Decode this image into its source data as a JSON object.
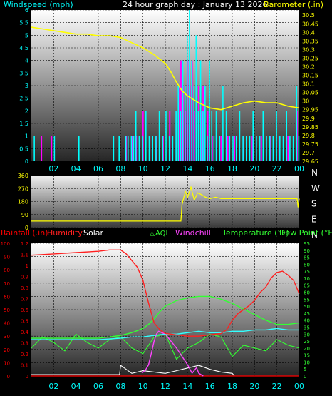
{
  "header": {
    "title": "24 hour graph day : January 13 2026"
  },
  "colors": {
    "windspeed": "#00ffff",
    "gust": "#ff00ff",
    "barometer": "#ffff00",
    "direction": "#ffff00",
    "rainfall": "#ff0000",
    "humidity": "#ff2020",
    "solar": "#ffffff",
    "aqi": "#33ff33",
    "windchill": "#ff44ff",
    "temperature": "#33ff33",
    "dewpoint": "#33ffff"
  },
  "chart_data": [
    {
      "type": "line",
      "id": "wind-baro",
      "y_left_label": "Windspeed (mph)",
      "y_right_label": "Barometer (.in)",
      "y_left_ticks": [
        "0",
        "0.5",
        "1",
        "1.5",
        "2",
        "2.5",
        "3",
        "3.5",
        "4",
        "4.5",
        "5",
        "5.5",
        "6"
      ],
      "y_left_range": [
        0,
        6
      ],
      "y_right_ticks": [
        "29.65",
        "29.7",
        "29.75",
        "29.8",
        "29.85",
        "29.9",
        "29.95",
        "30",
        "30.05",
        "30.1",
        "30.15",
        "30.2",
        "30.25",
        "30.3",
        "30.35",
        "30.4",
        "30.45",
        "30.5"
      ],
      "y_right_range": [
        29.65,
        30.53
      ],
      "x_ticks": [
        "02",
        "04",
        "06",
        "08",
        "10",
        "12",
        "14",
        "16",
        "18",
        "20",
        "22",
        "00"
      ],
      "x_range": [
        0,
        24
      ],
      "barometer": {
        "x": [
          0,
          1,
          2,
          3,
          4,
          5,
          6,
          7,
          8,
          9,
          10,
          11,
          12,
          12.5,
          13,
          13.5,
          14,
          15,
          16,
          17,
          18,
          19,
          20,
          21,
          22,
          23,
          24
        ],
        "values": [
          30.43,
          30.42,
          30.41,
          30.4,
          30.39,
          30.39,
          30.38,
          30.38,
          30.37,
          30.34,
          30.31,
          30.27,
          30.22,
          30.17,
          30.11,
          30.06,
          30.03,
          29.99,
          29.96,
          29.95,
          29.97,
          29.99,
          30.0,
          29.99,
          29.99,
          29.97,
          29.96
        ]
      },
      "windspeed": {
        "x": [
          0.2,
          2.0,
          4.2,
          7.3,
          7.8,
          8.4,
          8.6,
          8.9,
          9.1,
          9.3,
          9.6,
          9.9,
          10.2,
          10.5,
          10.8,
          11.1,
          11.4,
          11.7,
          12.0,
          12.3,
          12.6,
          12.9,
          13.1,
          13.3,
          13.5,
          13.7,
          13.9,
          14.1,
          14.3,
          14.5,
          14.7,
          14.9,
          15.1,
          15.3,
          15.5,
          15.7,
          15.9,
          16.1,
          16.3,
          16.5,
          16.8,
          17.1,
          17.4,
          17.7,
          18.0,
          18.3,
          18.6,
          18.9,
          19.2,
          19.5,
          19.8,
          20.1,
          20.4,
          20.7,
          21.0,
          21.3,
          21.6,
          21.9,
          22.2,
          22.5,
          22.8,
          23.1,
          23.4,
          23.7,
          23.9
        ],
        "values": [
          1,
          1,
          1,
          1,
          1,
          1,
          1,
          1,
          1,
          2,
          1,
          1,
          2,
          1,
          1,
          1,
          2,
          1,
          2,
          1,
          1,
          2,
          3,
          2,
          4,
          3,
          5,
          6,
          4,
          3,
          5,
          2,
          4,
          2,
          3,
          1,
          4,
          2,
          1,
          2,
          1,
          3,
          2,
          1,
          1,
          1,
          2,
          1,
          1,
          1,
          2,
          1,
          1,
          2,
          1,
          1,
          1,
          2,
          1,
          1,
          2,
          1,
          1,
          3,
          1
        ]
      },
      "gust": {
        "x": [
          0.9,
          1.8,
          8.5,
          9.0,
          9.4,
          10.0,
          10.6,
          11.2,
          11.8,
          12.4,
          13.0,
          13.2,
          13.4,
          13.6,
          13.8,
          14.0,
          14.2,
          14.4,
          14.6,
          14.8,
          15.0,
          15.2,
          15.4,
          15.8,
          16.2,
          16.6,
          17.0,
          17.6,
          18.2,
          19.0,
          19.8,
          20.6,
          21.4,
          22.2,
          23.0,
          23.8
        ],
        "values": [
          1,
          1,
          1,
          1,
          1,
          2,
          1,
          1,
          1,
          2,
          2,
          3,
          4,
          3,
          2,
          4,
          3,
          4,
          2,
          3,
          3,
          2,
          3,
          2,
          1,
          1,
          1,
          1,
          1,
          1,
          1,
          1,
          1,
          1,
          1,
          2
        ]
      }
    },
    {
      "type": "line",
      "id": "wind-direction",
      "y_left_ticks": [
        "0",
        "90",
        "180",
        "270",
        "360"
      ],
      "y_left_range": [
        0,
        360
      ],
      "y_right_ticks": [
        "N",
        "W",
        "S",
        "E",
        "N"
      ],
      "x_range": [
        0,
        24
      ],
      "direction": {
        "x": [
          0,
          2,
          4,
          6,
          8,
          10,
          12,
          13.4,
          13.5,
          13.8,
          14.0,
          14.3,
          14.6,
          14.9,
          15.2,
          15.6,
          16.0,
          16.5,
          17.0,
          18.0,
          19.0,
          20.0,
          21.0,
          22.0,
          23.0,
          23.8,
          23.9,
          24.0
        ],
        "values": [
          45,
          45,
          45,
          45,
          45,
          45,
          45,
          45,
          160,
          250,
          210,
          280,
          190,
          240,
          230,
          210,
          200,
          210,
          200,
          200,
          200,
          200,
          200,
          200,
          200,
          200,
          140,
          200
        ]
      }
    },
    {
      "type": "line",
      "id": "weather",
      "labels": [
        "Rainfall (.in)",
        "Humidity",
        "Solar",
        "AQI",
        "Windchill",
        "Temperature (°F)",
        "Dew Point (°F)"
      ],
      "y_left1_ticks": [
        "0",
        "10",
        "20",
        "30",
        "40",
        "50",
        "60",
        "70",
        "80",
        "90",
        "100"
      ],
      "y_left1_range": [
        0,
        100
      ],
      "y_left2_ticks": [
        "0",
        "0.1",
        "0.2",
        "0.3",
        "0.4",
        "0.5",
        "0.6",
        "0.7",
        "0.8",
        "0.9",
        "1",
        "1.1",
        "1.2"
      ],
      "y_left2_range": [
        0,
        1.2
      ],
      "y_right_ticks": [
        "0",
        "5",
        "10",
        "15",
        "20",
        "25",
        "30",
        "35",
        "40",
        "45",
        "50",
        "55",
        "60",
        "65",
        "70",
        "75",
        "80",
        "85",
        "90",
        "95"
      ],
      "y_right_range": [
        0,
        95
      ],
      "x_ticks": [
        "02",
        "04",
        "06",
        "08",
        "10",
        "12",
        "14",
        "16",
        "18",
        "20",
        "22",
        "00"
      ],
      "x_range": [
        0,
        24
      ],
      "humidity": {
        "x": [
          0,
          2,
          4,
          6,
          7,
          8,
          8.5,
          9,
          9.5,
          10,
          10.5,
          11,
          11.5,
          12,
          13,
          14,
          15,
          16,
          17,
          17.5,
          18,
          18.5,
          19,
          19.5,
          20,
          20.5,
          21,
          21.5,
          22,
          22.5,
          23,
          23.5,
          24
        ],
        "values": [
          91,
          92,
          93,
          94,
          95,
          95,
          92,
          87,
          82,
          72,
          55,
          40,
          35,
          32,
          31,
          30,
          30,
          31,
          32,
          35,
          42,
          47,
          50,
          53,
          57,
          63,
          67,
          74,
          78,
          79,
          76,
          72,
          62
        ]
      },
      "solar": {
        "x": [
          0,
          7.9,
          8.0,
          9.0,
          10.0,
          11.0,
          12.0,
          13.0,
          14.0,
          15.0,
          16.0,
          17.0,
          18.0,
          18.2,
          24
        ],
        "values": [
          1,
          1,
          8,
          2,
          4,
          3,
          2,
          4,
          6,
          8,
          5,
          3,
          2,
          0,
          0
        ]
      },
      "aqi": {
        "x": [
          0,
          1,
          2,
          3,
          4,
          5,
          6,
          7,
          8,
          9,
          10,
          11,
          12,
          13,
          14,
          15,
          16,
          17,
          18,
          19,
          20,
          21,
          22,
          23,
          24
        ],
        "values": [
          20,
          28,
          24,
          18,
          30,
          24,
          20,
          26,
          28,
          20,
          16,
          28,
          30,
          12,
          20,
          24,
          30,
          28,
          14,
          22,
          20,
          18,
          26,
          22,
          20
        ]
      },
      "windchill": {
        "x": [
          9.9,
          10.2,
          10.5,
          10.8,
          11.0,
          11.2,
          11.4,
          12.0,
          13.0,
          14.0,
          14.4,
          14.8,
          15.0,
          15.4
        ],
        "values": [
          2,
          4,
          8,
          18,
          25,
          30,
          32,
          30,
          20,
          8,
          2,
          6,
          2,
          0
        ]
      },
      "temperature": {
        "x": [
          0,
          2,
          4,
          6,
          7,
          8,
          9,
          10,
          10.5,
          11,
          11.5,
          12,
          13,
          14,
          15,
          16,
          17,
          18,
          19,
          20,
          21,
          22,
          23,
          24
        ],
        "values": [
          27,
          27,
          27,
          27,
          28,
          29,
          31,
          34,
          37,
          41,
          46,
          50,
          54,
          56,
          57,
          57,
          55,
          52,
          48,
          44,
          40,
          37,
          37,
          38
        ]
      },
      "dewpoint": {
        "x": [
          0,
          2,
          4,
          6,
          8,
          9,
          10,
          11,
          12,
          13,
          14,
          15,
          16,
          17,
          18,
          19,
          20,
          21,
          22,
          23,
          24
        ],
        "values": [
          26,
          26,
          26,
          26,
          27,
          28,
          28,
          29,
          30,
          30,
          31,
          32,
          31,
          31,
          32,
          32,
          33,
          33,
          34,
          33,
          33
        ]
      },
      "rainfall": {
        "x": [
          0,
          24
        ],
        "values": [
          0,
          0
        ]
      }
    }
  ]
}
